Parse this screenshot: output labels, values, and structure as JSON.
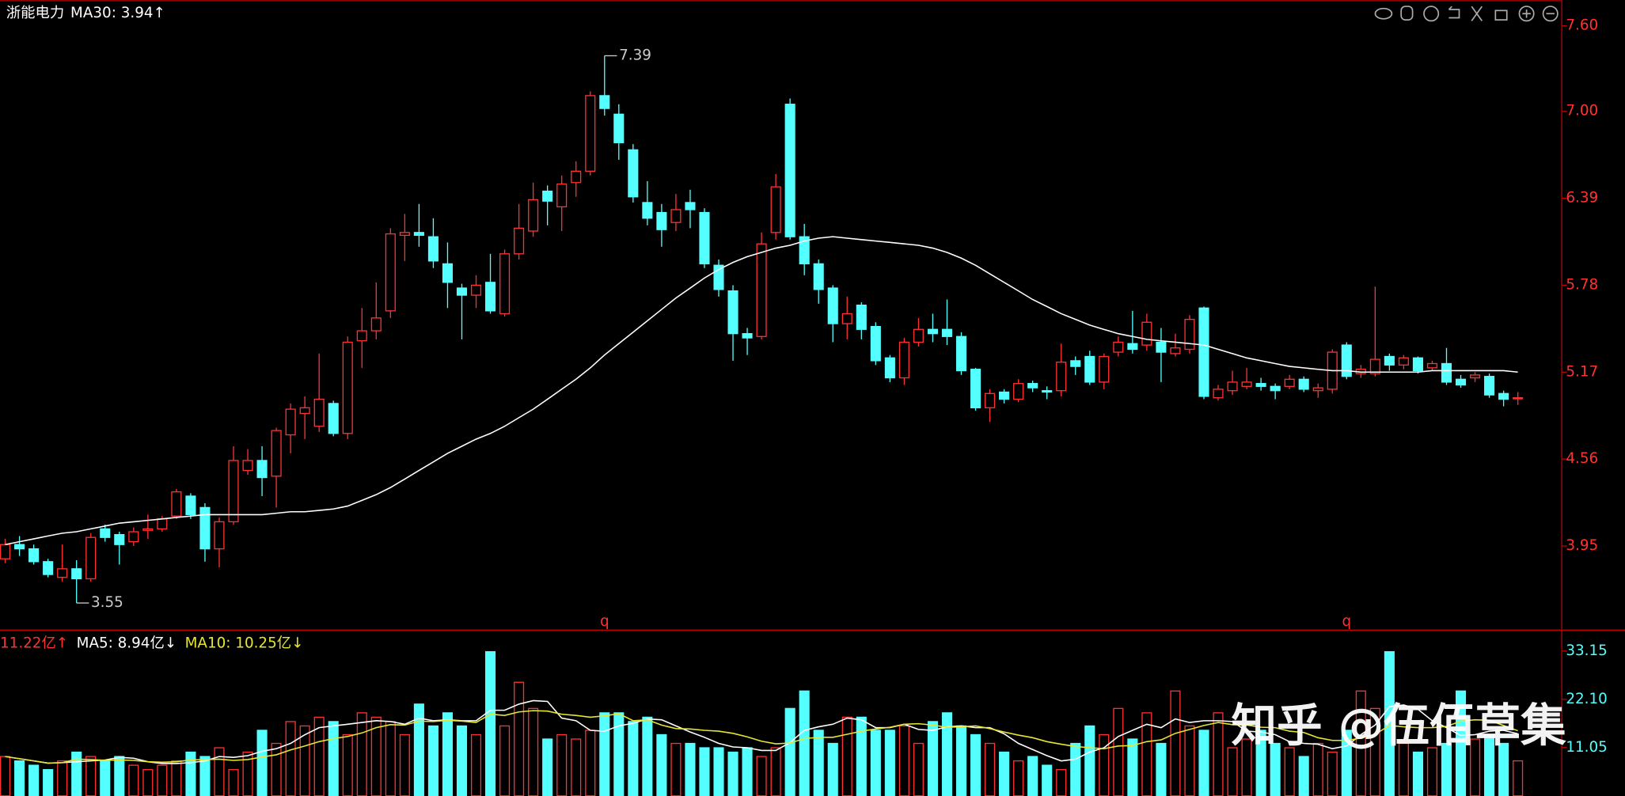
{
  "chart_data": [
    {
      "type": "candlestick",
      "title": "浙能电力",
      "indicator": "MA30: 3.94↑",
      "up_color": "#ff3232",
      "down_color": "#54ffff",
      "ma_color": "#ffffff",
      "ylim": [
        3.36,
        7.78
      ],
      "yticks": [
        {
          "value": 7.6,
          "label": "7.60"
        },
        {
          "value": 7.0,
          "label": "7.00"
        },
        6.39,
        5.78,
        5.17,
        4.56,
        3.95
      ],
      "open": [
        3.86,
        3.96,
        3.93,
        3.84,
        3.73,
        3.79,
        3.72,
        4.07,
        4.03,
        3.98,
        4.06,
        4.07,
        4.16,
        4.3,
        4.22,
        3.93,
        4.12,
        4.48,
        4.55,
        4.44,
        4.73,
        4.88,
        4.79,
        4.95,
        4.74,
        5.39,
        5.46,
        5.6,
        6.13,
        6.15,
        6.12,
        5.93,
        5.76,
        5.71,
        5.8,
        5.58,
        6.0,
        6.16,
        6.44,
        6.33,
        6.5,
        6.58,
        7.11,
        6.98,
        6.73,
        6.36,
        6.29,
        6.22,
        6.36,
        6.29,
        5.92,
        5.74,
        5.44,
        5.42,
        6.15,
        7.05,
        6.12,
        5.93,
        5.76,
        5.51,
        5.64,
        5.49,
        5.27,
        5.13,
        5.38,
        5.47,
        5.47,
        5.42,
        5.19,
        4.92,
        5.03,
        4.98,
        5.09,
        5.04,
        5.04,
        5.25,
        5.28,
        5.1,
        5.31,
        5.37,
        5.36,
        5.38,
        5.3,
        5.33,
        5.62,
        4.99,
        5.04,
        5.07,
        5.09,
        5.07,
        5.07,
        5.12,
        5.04,
        5.05,
        5.36,
        5.16,
        5.16,
        5.28,
        5.22,
        5.27,
        5.2,
        5.23,
        5.12,
        5.13,
        5.14,
        5.02,
        4.99
      ],
      "high": [
        4.0,
        4.02,
        3.96,
        3.86,
        3.96,
        3.85,
        4.04,
        4.1,
        4.05,
        4.08,
        4.17,
        4.16,
        4.35,
        4.32,
        4.25,
        4.15,
        4.65,
        4.63,
        4.65,
        4.78,
        4.95,
        5.0,
        5.3,
        4.97,
        5.42,
        5.62,
        5.8,
        6.18,
        6.28,
        6.35,
        6.25,
        6.08,
        5.79,
        5.85,
        6.0,
        6.03,
        6.35,
        6.5,
        6.48,
        6.55,
        6.65,
        7.14,
        7.39,
        7.05,
        6.77,
        6.51,
        6.35,
        6.42,
        6.45,
        6.32,
        5.96,
        5.78,
        5.48,
        6.15,
        6.56,
        7.09,
        6.21,
        5.96,
        5.78,
        5.7,
        5.66,
        5.52,
        5.29,
        5.41,
        5.55,
        5.58,
        5.68,
        5.45,
        5.2,
        5.05,
        5.05,
        5.12,
        5.11,
        5.07,
        5.37,
        5.28,
        5.32,
        5.3,
        5.42,
        5.6,
        5.58,
        5.48,
        5.44,
        5.57,
        5.63,
        5.08,
        5.18,
        5.2,
        5.13,
        5.09,
        5.15,
        5.14,
        5.09,
        5.33,
        5.38,
        5.22,
        5.77,
        5.3,
        5.29,
        5.28,
        5.25,
        5.34,
        5.15,
        5.17,
        5.16,
        5.04,
        5.03
      ],
      "low": [
        3.83,
        3.88,
        3.82,
        3.73,
        3.7,
        3.55,
        3.7,
        3.98,
        3.82,
        3.95,
        4.0,
        4.05,
        4.14,
        4.14,
        3.84,
        3.8,
        4.1,
        4.45,
        4.3,
        4.22,
        4.6,
        4.7,
        4.75,
        4.72,
        4.7,
        5.2,
        5.4,
        5.55,
        5.95,
        6.05,
        5.9,
        5.62,
        5.4,
        5.62,
        5.58,
        5.56,
        5.96,
        6.12,
        6.2,
        6.16,
        6.4,
        6.55,
        6.97,
        6.66,
        6.36,
        6.2,
        6.05,
        6.16,
        6.18,
        5.9,
        5.7,
        5.25,
        5.29,
        5.4,
        6.1,
        6.1,
        5.85,
        5.65,
        5.38,
        5.4,
        5.4,
        5.22,
        5.1,
        5.08,
        5.35,
        5.38,
        5.36,
        5.15,
        4.9,
        4.82,
        4.95,
        4.96,
        5.03,
        4.98,
        5.0,
        5.15,
        5.08,
        5.05,
        5.28,
        5.3,
        5.32,
        5.1,
        5.28,
        5.3,
        4.98,
        4.97,
        5.01,
        5.05,
        5.04,
        4.98,
        5.05,
        5.03,
        4.99,
        5.02,
        5.12,
        5.13,
        5.14,
        5.18,
        5.19,
        5.16,
        5.18,
        5.08,
        5.06,
        5.1,
        4.99,
        4.93,
        4.94
      ],
      "close": [
        3.96,
        3.93,
        3.84,
        3.75,
        3.79,
        3.72,
        4.01,
        4.01,
        3.96,
        4.05,
        4.07,
        4.14,
        4.33,
        4.17,
        3.93,
        4.12,
        4.55,
        4.55,
        4.43,
        4.76,
        4.91,
        4.92,
        4.98,
        4.74,
        5.38,
        5.46,
        5.55,
        6.14,
        6.15,
        6.13,
        5.95,
        5.8,
        5.71,
        5.78,
        5.6,
        6.0,
        6.18,
        6.38,
        6.37,
        6.49,
        6.58,
        7.11,
        7.02,
        6.78,
        6.4,
        6.25,
        6.17,
        6.31,
        6.31,
        5.93,
        5.75,
        5.44,
        5.41,
        6.07,
        6.47,
        6.12,
        5.93,
        5.75,
        5.51,
        5.58,
        5.47,
        5.25,
        5.13,
        5.38,
        5.47,
        5.44,
        5.42,
        5.18,
        4.92,
        5.02,
        4.98,
        5.09,
        5.06,
        5.03,
        5.24,
        5.21,
        5.1,
        5.28,
        5.38,
        5.33,
        5.52,
        5.31,
        5.34,
        5.54,
        5.0,
        5.05,
        5.1,
        5.1,
        5.07,
        5.04,
        5.12,
        5.05,
        5.06,
        5.31,
        5.14,
        5.19,
        5.26,
        5.22,
        5.27,
        5.18,
        5.23,
        5.1,
        5.08,
        5.15,
        5.01,
        4.98,
        4.99
      ],
      "ma30": [
        3.96,
        3.98,
        4.0,
        4.02,
        4.04,
        4.05,
        4.07,
        4.09,
        4.11,
        4.12,
        4.13,
        4.14,
        4.15,
        4.16,
        4.17,
        4.17,
        4.17,
        4.17,
        4.17,
        4.18,
        4.19,
        4.19,
        4.2,
        4.21,
        4.23,
        4.27,
        4.31,
        4.36,
        4.42,
        4.48,
        4.54,
        4.6,
        4.65,
        4.7,
        4.74,
        4.79,
        4.85,
        4.91,
        4.98,
        5.05,
        5.12,
        5.2,
        5.29,
        5.37,
        5.45,
        5.53,
        5.61,
        5.69,
        5.76,
        5.83,
        5.89,
        5.94,
        5.98,
        6.01,
        6.04,
        6.06,
        6.09,
        6.11,
        6.12,
        6.11,
        6.1,
        6.09,
        6.08,
        6.07,
        6.06,
        6.04,
        6.01,
        5.97,
        5.92,
        5.86,
        5.8,
        5.74,
        5.68,
        5.63,
        5.58,
        5.54,
        5.5,
        5.47,
        5.44,
        5.42,
        5.4,
        5.39,
        5.38,
        5.37,
        5.36,
        5.33,
        5.3,
        5.27,
        5.25,
        5.23,
        5.21,
        5.2,
        5.19,
        5.18,
        5.18,
        5.17,
        5.17,
        5.17,
        5.17,
        5.17,
        5.18,
        5.18,
        5.18,
        5.18,
        5.18,
        5.18,
        5.17
      ],
      "annotations": [
        {
          "label": "7.39",
          "index": 42
        },
        {
          "label": "3.55",
          "index": 5
        },
        {
          "label": "q",
          "index": 42
        },
        {
          "label": "q",
          "index": 94
        }
      ]
    },
    {
      "type": "volume",
      "value_label": "11.22亿↑",
      "ma5_label": "MA5: 8.94亿↓",
      "ma10_label": "MA10: 10.25亿↓",
      "ma5_color": "#ffffff",
      "ma10_color": "#e6e632",
      "ylim": [
        0,
        37
      ],
      "yticks": [
        33.15,
        {
          "value": 22.1,
          "label": "22.10"
        },
        11.05
      ],
      "values": [
        9,
        8,
        7,
        6,
        8,
        10,
        9,
        8,
        9,
        7,
        6,
        7,
        8,
        10,
        9,
        11,
        6,
        10,
        15,
        12,
        17,
        16,
        18,
        17,
        14,
        19,
        18,
        17,
        14,
        21,
        16,
        19,
        16,
        14,
        33,
        16,
        26,
        20,
        13,
        14,
        13,
        15,
        19,
        19,
        17,
        18,
        14,
        12,
        12,
        11,
        11,
        10,
        11,
        9,
        11,
        20,
        24,
        15,
        12,
        18,
        18,
        15,
        15,
        16,
        12,
        17,
        19,
        16,
        14,
        12,
        10,
        8,
        9,
        7,
        6,
        12,
        16,
        14,
        20,
        13,
        19,
        12,
        24,
        16,
        15,
        19,
        11,
        13,
        15,
        12,
        11,
        9,
        12,
        10,
        15,
        24,
        20,
        33,
        12,
        10,
        11,
        12,
        24,
        13,
        14,
        12,
        8
      ],
      "ma5": [
        9,
        8.5,
        8,
        7.5,
        7.6,
        7.8,
        8,
        8.2,
        8.8,
        8.6,
        7.8,
        7.4,
        7.4,
        7.6,
        8,
        9,
        8.8,
        9.2,
        10.2,
        10.8,
        12,
        14,
        15.6,
        16,
        16.4,
        16.8,
        17.2,
        17,
        16.4,
        17.8,
        17.2,
        17.4,
        17.2,
        17.2,
        19.6,
        19.6,
        21,
        21.8,
        21.6,
        17.8,
        17.2,
        15,
        14.8,
        16,
        16.6,
        17.6,
        17.4,
        16,
        14.6,
        13.4,
        12,
        11.2,
        11,
        10.4,
        10.4,
        12.2,
        15,
        15.8,
        16.4,
        17.8,
        17.4,
        15.6,
        15.6,
        16.4,
        15.2,
        15,
        15.8,
        16,
        15.6,
        15.6,
        14.2,
        12,
        10.6,
        9.2,
        8,
        8.4,
        10,
        11,
        13.6,
        15,
        16.4,
        15.6,
        17.6,
        16.8,
        17.2,
        17.2,
        17,
        14.8,
        14.6,
        14,
        12.4,
        12,
        11.8,
        10.8,
        11.4,
        14,
        16.2,
        20.4,
        20.8,
        19.8,
        17.2,
        15.6,
        13.8,
        14,
        14.8,
        15,
        14.2
      ],
      "ma10": [
        9,
        8.5,
        8,
        7.5,
        7.6,
        8.4,
        8.3,
        8.1,
        8.2,
        8.1,
        7.8,
        7.7,
        7.8,
        8.2,
        8.3,
        8.4,
        8.1,
        8.3,
        8.9,
        9.4,
        10.5,
        11.4,
        12.4,
        13.1,
        13.6,
        14.4,
        15.6,
        16.3,
        16.2,
        17.1,
        17,
        17.3,
        17.1,
        16.8,
        18.7,
        18.4,
        19.2,
        19.5,
        19.4,
        18.7,
        18.4,
        18,
        18.3,
        18.8,
        17.2,
        17.4,
        16.2,
        15.4,
        15.3,
        15,
        14.8,
        14.3,
        13.5,
        12.5,
        11.9,
        12.1,
        13.1,
        13.4,
        13.4,
        14.1,
        14.8,
        15.3,
        15.7,
        16.4,
        16.5,
        16.2,
        15.7,
        15.8,
        16,
        15.4,
        14.6,
        13.9,
        13.3,
        12.4,
        11.8,
        11.3,
        11,
        10.8,
        11.4,
        11.5,
        12.4,
        12.8,
        14.3,
        15.2,
        16.1,
        16.8,
        16.3,
        16.2,
        15.7,
        15.6,
        14.8,
        14.5,
        13.3,
        12.7,
        12.7,
        13.2,
        14.1,
        16.1,
        15.8,
        15.6,
        15.6,
        15.9,
        17.1,
        17.4,
        17.3,
        16.1,
        14.9
      ]
    }
  ],
  "watermark": "知乎 @伍佰草集"
}
